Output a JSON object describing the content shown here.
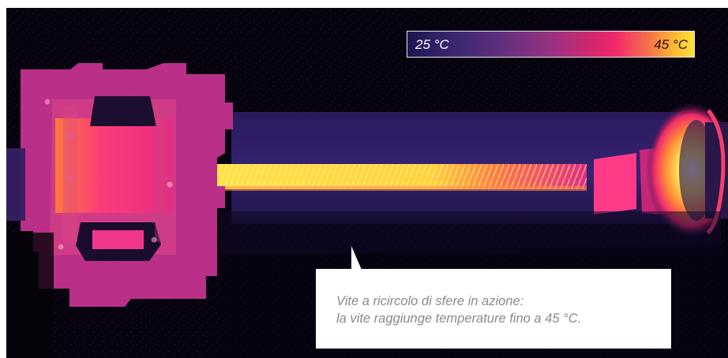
{
  "thermal_scale": {
    "min_label": "25 °C",
    "max_label": "45 °C",
    "gradient_colors": [
      "#1e1550",
      "#5e2f7c",
      "#963282",
      "#f0266c",
      "#f5704a",
      "#ffe23a"
    ]
  },
  "callout": {
    "line1": "Vite a ricircolo di sfere in azione:",
    "line2": "la vite raggiunge temperature fino a 45 °C."
  },
  "image": {
    "subject": "thermal image of a ball screw assembly",
    "palette": {
      "background": "#06030f",
      "cool": "#342067",
      "warm": "#c02f88",
      "hot": "#ff2b72",
      "hottest": "#ffe23a"
    }
  }
}
